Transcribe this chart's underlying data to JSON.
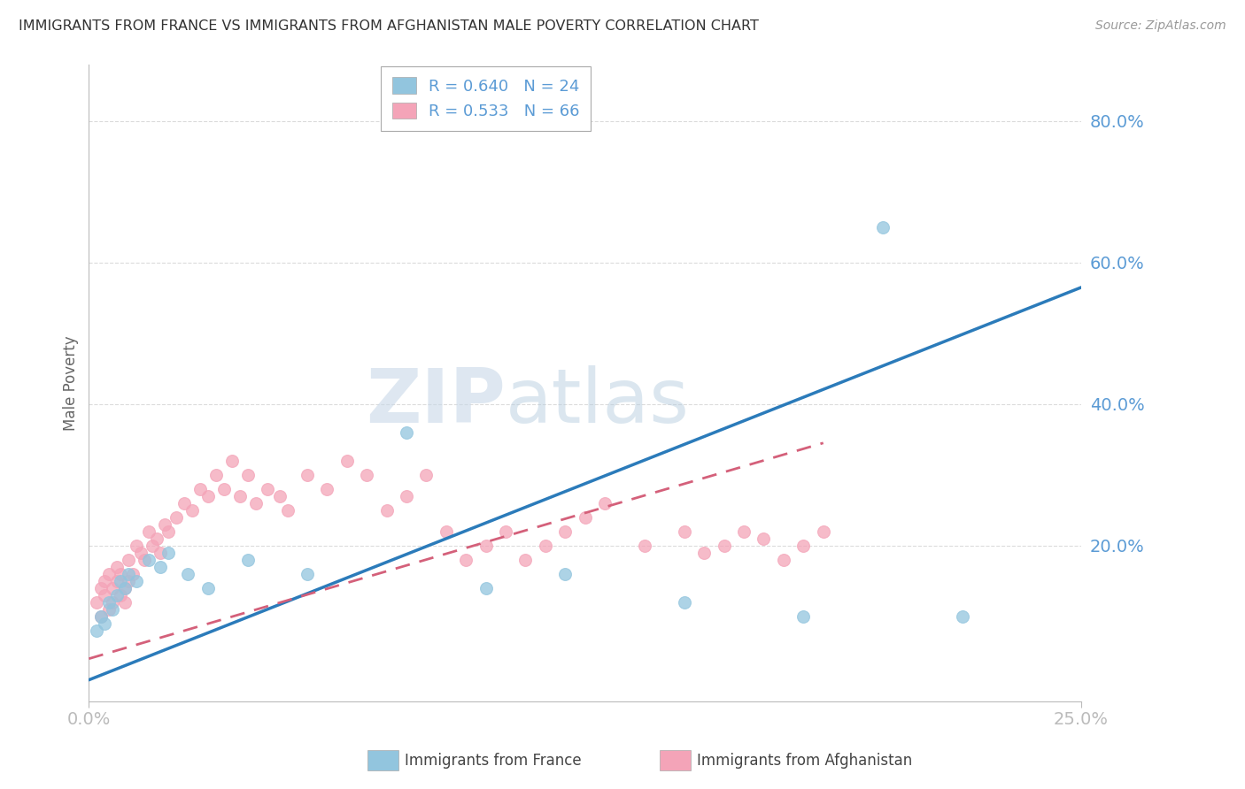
{
  "title": "IMMIGRANTS FROM FRANCE VS IMMIGRANTS FROM AFGHANISTAN MALE POVERTY CORRELATION CHART",
  "source": "Source: ZipAtlas.com",
  "xlabel_france": "Immigrants from France",
  "xlabel_afghanistan": "Immigrants from Afghanistan",
  "ylabel": "Male Poverty",
  "xlim": [
    0.0,
    0.25
  ],
  "ylim": [
    -0.02,
    0.88
  ],
  "yticks": [
    0.2,
    0.4,
    0.6,
    0.8
  ],
  "ytick_labels": [
    "20.0%",
    "40.0%",
    "60.0%",
    "80.0%"
  ],
  "xticks": [
    0.0,
    0.25
  ],
  "xtick_labels": [
    "0.0%",
    "25.0%"
  ],
  "france_color": "#92c5de",
  "afghanistan_color": "#f4a4b8",
  "france_line_color": "#2b7bba",
  "afghanistan_line_color": "#d4607a",
  "legend_france_R": "R = 0.640",
  "legend_france_N": "N = 24",
  "legend_afghanistan_R": "R = 0.533",
  "legend_afghanistan_N": "N = 66",
  "france_line_x0": 0.0,
  "france_line_y0": 0.01,
  "france_line_x1": 0.25,
  "france_line_y1": 0.565,
  "afghanistan_line_x0": 0.0,
  "afghanistan_line_y0": 0.04,
  "afghanistan_line_x1": 0.185,
  "afghanistan_line_y1": 0.345,
  "france_scatter_x": [
    0.002,
    0.003,
    0.004,
    0.005,
    0.006,
    0.007,
    0.008,
    0.009,
    0.01,
    0.012,
    0.015,
    0.018,
    0.02,
    0.025,
    0.03,
    0.04,
    0.055,
    0.08,
    0.1,
    0.12,
    0.15,
    0.18,
    0.2,
    0.22
  ],
  "france_scatter_y": [
    0.08,
    0.1,
    0.09,
    0.12,
    0.11,
    0.13,
    0.15,
    0.14,
    0.16,
    0.15,
    0.18,
    0.17,
    0.19,
    0.16,
    0.14,
    0.18,
    0.16,
    0.36,
    0.14,
    0.16,
    0.12,
    0.1,
    0.65,
    0.1
  ],
  "afghanistan_scatter_x": [
    0.002,
    0.003,
    0.003,
    0.004,
    0.004,
    0.005,
    0.005,
    0.006,
    0.006,
    0.007,
    0.007,
    0.008,
    0.008,
    0.009,
    0.009,
    0.01,
    0.01,
    0.011,
    0.012,
    0.013,
    0.014,
    0.015,
    0.016,
    0.017,
    0.018,
    0.019,
    0.02,
    0.022,
    0.024,
    0.026,
    0.028,
    0.03,
    0.032,
    0.034,
    0.036,
    0.038,
    0.04,
    0.042,
    0.045,
    0.048,
    0.05,
    0.055,
    0.06,
    0.065,
    0.07,
    0.075,
    0.08,
    0.085,
    0.09,
    0.095,
    0.1,
    0.105,
    0.11,
    0.115,
    0.12,
    0.125,
    0.13,
    0.14,
    0.15,
    0.155,
    0.16,
    0.165,
    0.17,
    0.175,
    0.18,
    0.185
  ],
  "afghanistan_scatter_y": [
    0.12,
    0.14,
    0.1,
    0.15,
    0.13,
    0.16,
    0.11,
    0.14,
    0.12,
    0.15,
    0.17,
    0.13,
    0.16,
    0.14,
    0.12,
    0.15,
    0.18,
    0.16,
    0.2,
    0.19,
    0.18,
    0.22,
    0.2,
    0.21,
    0.19,
    0.23,
    0.22,
    0.24,
    0.26,
    0.25,
    0.28,
    0.27,
    0.3,
    0.28,
    0.32,
    0.27,
    0.3,
    0.26,
    0.28,
    0.27,
    0.25,
    0.3,
    0.28,
    0.32,
    0.3,
    0.25,
    0.27,
    0.3,
    0.22,
    0.18,
    0.2,
    0.22,
    0.18,
    0.2,
    0.22,
    0.24,
    0.26,
    0.2,
    0.22,
    0.19,
    0.2,
    0.22,
    0.21,
    0.18,
    0.2,
    0.22
  ],
  "watermark_zip": "ZIP",
  "watermark_atlas": "atlas",
  "grid_color": "#cccccc",
  "background_color": "#ffffff",
  "title_color": "#333333",
  "axis_label_color": "#5b9bd5",
  "spine_color": "#bbbbbb"
}
